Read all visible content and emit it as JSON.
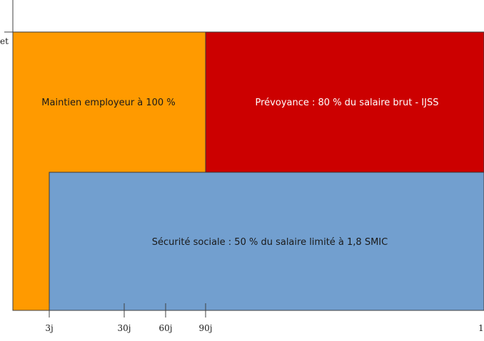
{
  "colors": {
    "employer": "#FF9A00",
    "prevoyance": "#CC0000",
    "securite_sociale": "#729FCF",
    "axis": "#404040",
    "border": "#3a3a3a"
  },
  "y_axis": {
    "label_fragment": "et"
  },
  "blocks": {
    "employer": {
      "label": "Maintien employeur à 100 %",
      "text_color": "#1a1a1a"
    },
    "prevoyance": {
      "label": "Prévoyance : 80 % du salaire brut - IJSS",
      "text_color": "#ffffff"
    },
    "securite_sociale": {
      "label": "Sécurité sociale : 50 % du salaire limité à 1,8 SMIC",
      "text_color": "#1a1a1a"
    }
  },
  "x_axis": {
    "ticks": [
      {
        "label": "3j"
      },
      {
        "label": "30j"
      },
      {
        "label": "60j"
      },
      {
        "label": "90j"
      },
      {
        "label": "1"
      }
    ]
  }
}
